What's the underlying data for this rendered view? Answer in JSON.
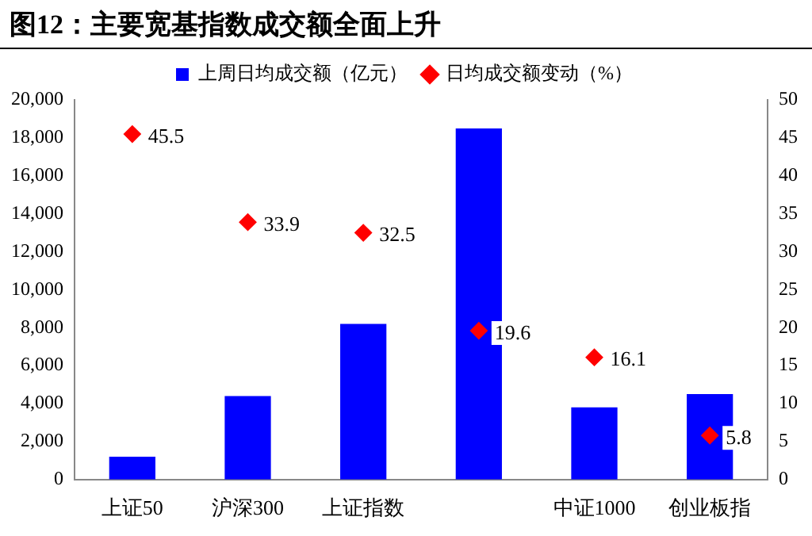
{
  "chart_data": {
    "type": "bar",
    "title": "图12：主要宽基指数成交额全面上升",
    "categories": [
      "上证50",
      "沪深300",
      "上证指数",
      null,
      "中证1000",
      "创业板指"
    ],
    "series": [
      {
        "name": "上周日均成交额（亿元）",
        "color": "#0000ff",
        "values": [
          1200,
          4400,
          8200,
          18500,
          3800,
          4500
        ]
      },
      {
        "name": "日均成交额变动（%）",
        "type": "scatter",
        "axis": "y2",
        "color": "#ff0000",
        "marker": "diamond",
        "values": [
          45.5,
          33.9,
          32.5,
          19.6,
          16.1,
          5.8
        ],
        "value_labels": [
          "45.5",
          "33.9",
          "32.5",
          "19.6",
          "16.1",
          "5.8"
        ]
      }
    ],
    "ylim": [
      0,
      20000
    ],
    "yticks": [
      {
        "value": 0,
        "label": "0"
      },
      {
        "value": 2000,
        "label": "2,000"
      },
      {
        "value": 4000,
        "label": "4,000"
      },
      {
        "value": 6000,
        "label": "6,000"
      },
      {
        "value": 8000,
        "label": "8,000"
      },
      {
        "value": 10000,
        "label": "10,000"
      },
      {
        "value": 12000,
        "label": "12,000"
      },
      {
        "value": 14000,
        "label": "14,000"
      },
      {
        "value": 16000,
        "label": "16,000"
      },
      {
        "value": 18000,
        "label": "18,000"
      },
      {
        "value": 20000,
        "label": "20,000"
      }
    ],
    "y2lim": [
      0,
      50
    ],
    "y2ticks": [
      0,
      5,
      10,
      15,
      20,
      25,
      30,
      35,
      40,
      45,
      50
    ],
    "grid": false,
    "legend": "top"
  }
}
